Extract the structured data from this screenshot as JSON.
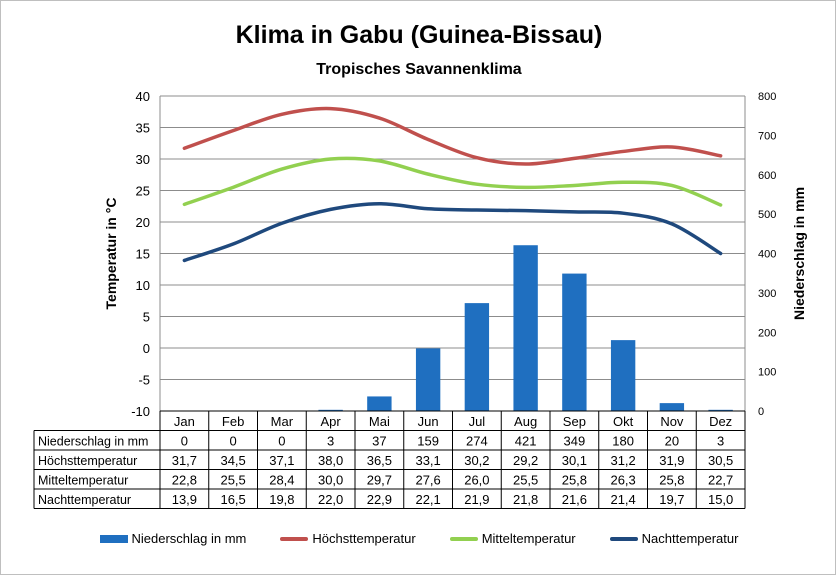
{
  "chart_data": {
    "type": "bar",
    "title": "Klima in Gabu (Guinea-Bissau)",
    "subtitle": "Tropisches Savannenklima",
    "categories": [
      "Jan",
      "Feb",
      "Mar",
      "Apr",
      "Mai",
      "Jun",
      "Jul",
      "Aug",
      "Sep",
      "Okt",
      "Nov",
      "Dez"
    ],
    "ylabel_left": "Temperatur in °C",
    "ylabel_right": "Niederschlag in mm",
    "ylim_left": [
      -10,
      40
    ],
    "ylim_right": [
      0,
      800
    ],
    "yticks_left": [
      "40",
      "35",
      "30",
      "25",
      "20",
      "15",
      "10",
      "5",
      "0",
      "-5",
      "-10"
    ],
    "yticks_right": [
      "800",
      "700",
      "600",
      "500",
      "400",
      "300",
      "200",
      "100",
      "0"
    ],
    "grid": true,
    "legend_position": "bottom",
    "series": [
      {
        "name": "Niederschlag in mm",
        "kind": "bar",
        "axis": "right",
        "color": "#1f6fc0",
        "values": [
          0,
          0,
          0,
          3,
          37,
          159,
          274,
          421,
          349,
          180,
          20,
          3
        ],
        "display": [
          "0",
          "0",
          "0",
          "3",
          "37",
          "159",
          "274",
          "421",
          "349",
          "180",
          "20",
          "3"
        ]
      },
      {
        "name": "Höchsttemperatur",
        "kind": "line",
        "axis": "left",
        "color": "#c0504d",
        "values": [
          31.7,
          34.5,
          37.1,
          38.0,
          36.5,
          33.1,
          30.2,
          29.2,
          30.1,
          31.2,
          31.9,
          30.5
        ],
        "display": [
          "31,7",
          "34,5",
          "37,1",
          "38,0",
          "36,5",
          "33,1",
          "30,2",
          "29,2",
          "30,1",
          "31,2",
          "31,9",
          "30,5"
        ]
      },
      {
        "name": "Mitteltemperatur",
        "kind": "line",
        "axis": "left",
        "color": "#92d050",
        "values": [
          22.8,
          25.5,
          28.4,
          30.0,
          29.7,
          27.6,
          26.0,
          25.5,
          25.8,
          26.3,
          25.8,
          22.7
        ],
        "display": [
          "22,8",
          "25,5",
          "28,4",
          "30,0",
          "29,7",
          "27,6",
          "26,0",
          "25,5",
          "25,8",
          "26,3",
          "25,8",
          "22,7"
        ]
      },
      {
        "name": "Nachttemperatur",
        "kind": "line",
        "axis": "left",
        "color": "#1f497d",
        "values": [
          13.9,
          16.5,
          19.8,
          22.0,
          22.9,
          22.1,
          21.9,
          21.8,
          21.6,
          21.4,
          19.7,
          15.0
        ],
        "display": [
          "13,9",
          "16,5",
          "19,8",
          "22,0",
          "22,9",
          "22,1",
          "21,9",
          "21,8",
          "21,6",
          "21,4",
          "19,7",
          "15,0"
        ]
      }
    ]
  }
}
